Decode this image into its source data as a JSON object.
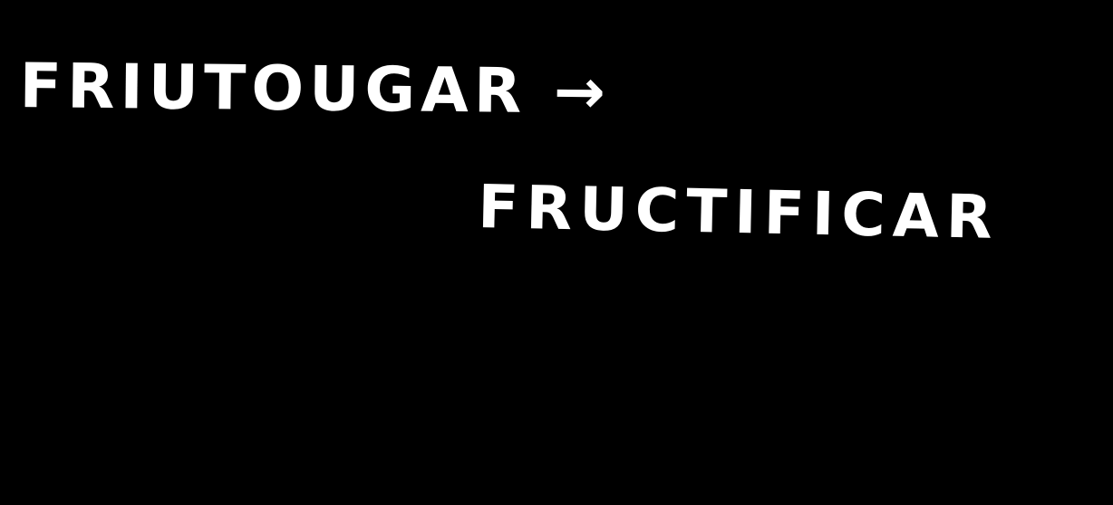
{
  "notes": {
    "line1": "FRIUTOUGAR →",
    "line2": "FRUCTIFICAR"
  },
  "colors": {
    "background": "#000000",
    "ink": "#ffffff"
  }
}
